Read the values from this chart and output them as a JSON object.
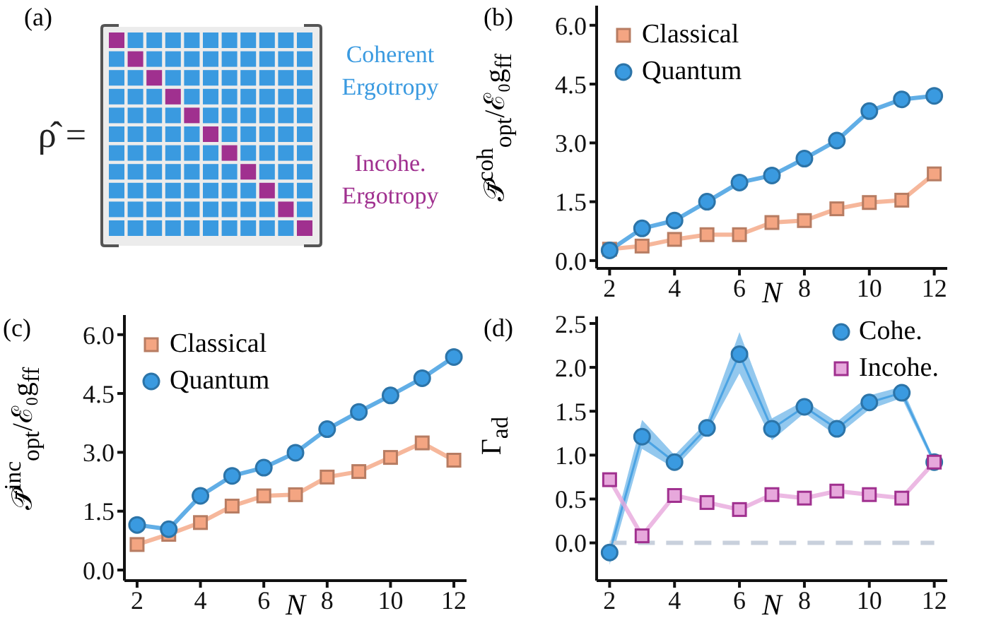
{
  "chart_data": [
    {
      "type": "other",
      "title": "(a)",
      "annotations": [
        "ρ̂ =",
        "Coherent Ergotropy",
        "Incohe. Ergotropy"
      ]
    },
    {
      "type": "line",
      "title": "(b)",
      "xlabel": "N",
      "ylabel": "𝒫̄$^{coh}$$_{opt}$/ℰ₀g$_{ff}$",
      "x": [
        2,
        3,
        4,
        5,
        6,
        7,
        8,
        9,
        10,
        11,
        12
      ],
      "xlim": [
        1.6,
        12.4
      ],
      "xticks": [
        2,
        4,
        6,
        8,
        10,
        12
      ],
      "ylim": [
        -0.2,
        6.5
      ],
      "yticks": [
        {
          "value": 0,
          "label": "0.0"
        },
        {
          "value": 1.5,
          "label": "1.5"
        },
        {
          "value": 3,
          "label": "3.0"
        },
        {
          "value": 4.5,
          "label": "4.5"
        },
        {
          "value": 6,
          "label": "6.0"
        }
      ],
      "legend": "top left",
      "series": [
        {
          "name": "Classical",
          "color": "#f4a582",
          "marker": "square",
          "values": [
            0.29,
            0.37,
            0.54,
            0.66,
            0.66,
            0.97,
            1.02,
            1.32,
            1.48,
            1.54,
            2.21
          ]
        },
        {
          "name": "Quantum",
          "color": "#3a9ae0",
          "marker": "circle",
          "values": [
            0.26,
            0.82,
            1.02,
            1.5,
            1.99,
            2.17,
            2.6,
            3.06,
            3.81,
            4.11,
            4.2
          ]
        }
      ]
    },
    {
      "type": "line",
      "title": "(c)",
      "xlabel": "N",
      "ylabel": "𝒫̄$^{inc}$$_{opt}$/ℰ₀g$_{ff}$",
      "x": [
        2,
        3,
        4,
        5,
        6,
        7,
        8,
        9,
        10,
        11,
        12
      ],
      "xlim": [
        1.6,
        12.4
      ],
      "xticks": [
        2,
        4,
        6,
        8,
        10,
        12
      ],
      "ylim": [
        -0.27,
        6.5
      ],
      "yticks": [
        {
          "value": 0,
          "label": "0.0"
        },
        {
          "value": 1.5,
          "label": "1.5"
        },
        {
          "value": 3,
          "label": "3.0"
        },
        {
          "value": 4.5,
          "label": "4.5"
        },
        {
          "value": 6,
          "label": "6.0"
        }
      ],
      "legend": "top left",
      "series": [
        {
          "name": "Classical",
          "color": "#f4a582",
          "marker": "square",
          "values": [
            0.65,
            0.91,
            1.21,
            1.63,
            1.89,
            1.92,
            2.37,
            2.51,
            2.87,
            3.24,
            2.8
          ]
        },
        {
          "name": "Quantum",
          "color": "#3a9ae0",
          "marker": "circle",
          "values": [
            1.15,
            1.04,
            1.89,
            2.4,
            2.61,
            2.99,
            3.59,
            4.03,
            4.45,
            4.89,
            5.43
          ]
        }
      ]
    },
    {
      "type": "line",
      "title": "(d)",
      "xlabel": "N",
      "ylabel": "Γ$_{ad}$",
      "x": [
        2,
        3,
        4,
        5,
        6,
        7,
        8,
        9,
        10,
        11,
        12
      ],
      "xlim": [
        1.6,
        12.4
      ],
      "xticks": [
        2,
        4,
        6,
        8,
        10,
        12
      ],
      "ylim": [
        -0.43,
        2.58
      ],
      "yticks": [
        {
          "value": 0,
          "label": "0.0"
        },
        {
          "value": 0.5,
          "label": "0.5"
        },
        {
          "value": 1,
          "label": "1.0"
        },
        {
          "value": 1.5,
          "label": "1.5"
        },
        {
          "value": 2,
          "label": "2.0"
        },
        {
          "value": 2.5,
          "label": "2.5"
        }
      ],
      "legend": "top right",
      "ref_lines": [
        {
          "axis": "y",
          "value": 0,
          "color": "#c8d0dc",
          "line_style": "dashed"
        }
      ],
      "series": [
        {
          "name": "Cohe.",
          "color": "#3a9ae0",
          "marker": "circle",
          "values": [
            -0.11,
            1.21,
            0.92,
            1.31,
            2.15,
            1.3,
            1.55,
            1.3,
            1.6,
            1.71,
            0.92
          ],
          "lower": [
            -0.25,
            1.07,
            0.85,
            1.25,
            1.93,
            1.17,
            1.48,
            1.22,
            1.52,
            1.65,
            0.88
          ],
          "upper": [
            -0.02,
            1.4,
            1.0,
            1.38,
            2.4,
            1.42,
            1.62,
            1.38,
            1.68,
            1.78,
            0.95
          ]
        },
        {
          "name": "Incohe.",
          "color": "#e7a8dc",
          "marker": "square",
          "values": [
            0.72,
            0.08,
            0.54,
            0.46,
            0.38,
            0.55,
            0.51,
            0.59,
            0.55,
            0.51,
            0.92
          ]
        }
      ]
    }
  ]
}
